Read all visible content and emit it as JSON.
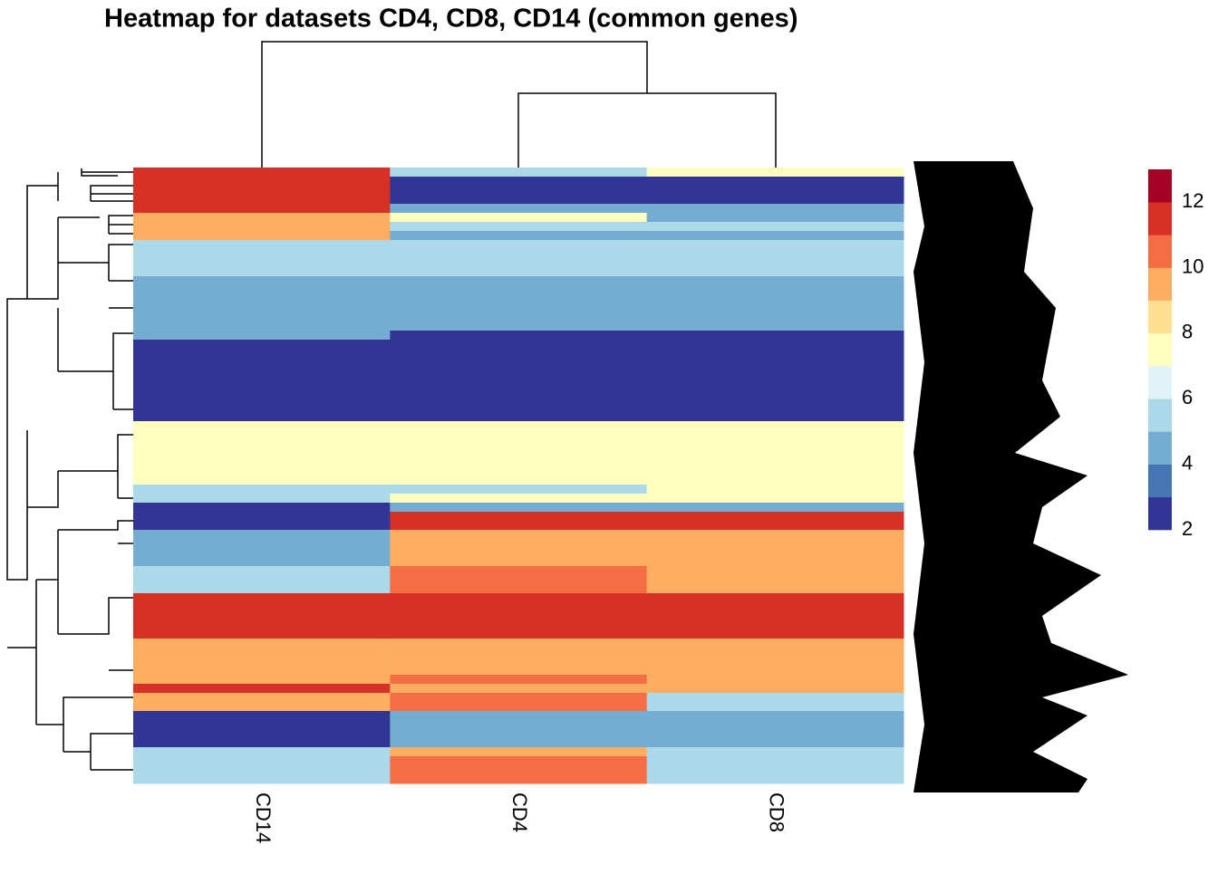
{
  "chart_data": {
    "type": "heatmap",
    "title": "Heatmap for datasets CD4, CD8, CD14 (common genes)",
    "columns": [
      "CD14",
      "CD4",
      "CD8"
    ],
    "matrix": [
      [
        11.5,
        5.5,
        7.5
      ],
      [
        11.5,
        2.5,
        2.5
      ],
      [
        11.5,
        2.5,
        2.5
      ],
      [
        11.5,
        2.5,
        2.5
      ],
      [
        11.5,
        4.5,
        4.5
      ],
      [
        9.5,
        7.5,
        4.5
      ],
      [
        9.5,
        5.5,
        5.5
      ],
      [
        9.5,
        4.5,
        4.5
      ],
      [
        5.5,
        5.5,
        5.5
      ],
      [
        5.5,
        5.5,
        5.5
      ],
      [
        5.5,
        5.5,
        5.5
      ],
      [
        5.5,
        5.5,
        5.5
      ],
      [
        4.5,
        4.5,
        4.5
      ],
      [
        4.5,
        4.5,
        4.5
      ],
      [
        4.5,
        4.5,
        4.5
      ],
      [
        4.5,
        4.5,
        4.5
      ],
      [
        4.5,
        4.5,
        4.5
      ],
      [
        4.5,
        4.5,
        4.5
      ],
      [
        4.5,
        2.5,
        2.5
      ],
      [
        2.5,
        2.5,
        2.5
      ],
      [
        2.5,
        2.5,
        2.5
      ],
      [
        2.5,
        2.5,
        2.5
      ],
      [
        2.5,
        2.5,
        2.5
      ],
      [
        2.5,
        2.5,
        2.5
      ],
      [
        2.5,
        2.5,
        2.5
      ],
      [
        2.5,
        2.5,
        2.5
      ],
      [
        2.5,
        2.5,
        2.5
      ],
      [
        2.5,
        2.5,
        2.5
      ],
      [
        7.5,
        7.5,
        7.5
      ],
      [
        7.5,
        7.5,
        7.5
      ],
      [
        7.5,
        7.5,
        7.5
      ],
      [
        7.5,
        7.5,
        7.5
      ],
      [
        7.5,
        7.5,
        7.5
      ],
      [
        7.5,
        7.5,
        7.5
      ],
      [
        7.5,
        7.5,
        7.5
      ],
      [
        5.5,
        5.5,
        7.5
      ],
      [
        5.5,
        7.5,
        7.5
      ],
      [
        2.5,
        4.5,
        4.5
      ],
      [
        2.5,
        11.5,
        11.5
      ],
      [
        2.5,
        11.5,
        11.5
      ],
      [
        4.5,
        9.5,
        9.5
      ],
      [
        4.5,
        9.5,
        9.5
      ],
      [
        4.5,
        9.5,
        9.5
      ],
      [
        4.5,
        9.5,
        9.5
      ],
      [
        5.5,
        10.5,
        9.5
      ],
      [
        5.5,
        10.5,
        9.5
      ],
      [
        5.5,
        10.5,
        9.5
      ],
      [
        11.5,
        11.5,
        11.5
      ],
      [
        11.5,
        11.5,
        11.5
      ],
      [
        11.5,
        11.5,
        11.5
      ],
      [
        11.5,
        11.5,
        11.5
      ],
      [
        11.5,
        11.5,
        11.5
      ],
      [
        9.5,
        9.5,
        9.5
      ],
      [
        9.5,
        9.5,
        9.5
      ],
      [
        9.5,
        9.5,
        9.5
      ],
      [
        9.5,
        9.5,
        9.5
      ],
      [
        9.5,
        10.5,
        9.5
      ],
      [
        11.5,
        9.5,
        9.5
      ],
      [
        9.5,
        10.5,
        5.5
      ],
      [
        9.5,
        10.5,
        5.5
      ],
      [
        2.5,
        4.5,
        4.5
      ],
      [
        2.5,
        4.5,
        4.5
      ],
      [
        2.5,
        4.5,
        4.5
      ],
      [
        2.5,
        4.5,
        4.5
      ],
      [
        5.5,
        9.5,
        5.5
      ],
      [
        5.5,
        10.5,
        5.5
      ],
      [
        5.5,
        10.5,
        5.5
      ],
      [
        5.5,
        10.5,
        5.5
      ]
    ],
    "legend_breaks": [
      2,
      3,
      4,
      5,
      6,
      7,
      8,
      9,
      10,
      11,
      12,
      13
    ],
    "colors": [
      "#313695",
      "#4575b4",
      "#74add1",
      "#abd9e9",
      "#e0f3f8",
      "#ffffbf",
      "#fee090",
      "#fdae61",
      "#f46d43",
      "#d73027",
      "#a50026"
    ],
    "legend_ticks": [
      2,
      4,
      6,
      8,
      10,
      12
    ]
  }
}
